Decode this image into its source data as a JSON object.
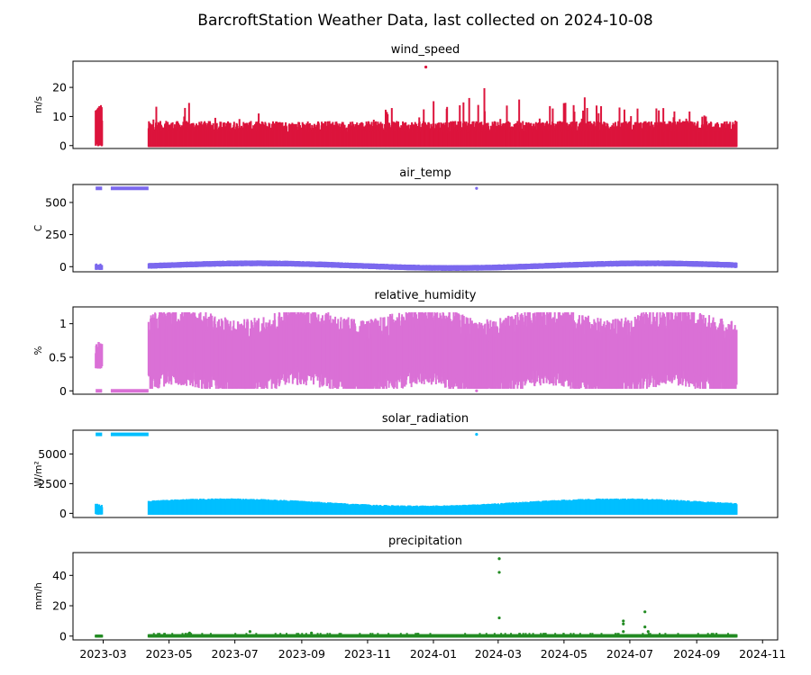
{
  "figure": {
    "title": "BarcroftStation Weather Data, last collected on 2024-10-08",
    "x_tick_labels": [
      "2023-03",
      "2023-05",
      "2023-07",
      "2023-09",
      "2023-11",
      "2024-01",
      "2024-03",
      "2024-05",
      "2024-07",
      "2024-09",
      "2024-11"
    ]
  },
  "chart_data": [
    {
      "type": "scatter",
      "title": "wind_speed",
      "ylabel": "m/s",
      "color": "#dc143c",
      "xlim": [
        "2023-02-01",
        "2024-11-15"
      ],
      "ylim": [
        -1,
        29
      ],
      "yticks": [
        0,
        10,
        20
      ],
      "series": [
        {
          "segments": [
            {
              "x_start": "2023-02-22",
              "x_end": "2023-02-28",
              "y_min": 0,
              "y_max": 14
            },
            {
              "x_start": "2023-04-12",
              "x_end": "2024-10-08",
              "y_min": 0,
              "y_max": 10,
              "peaks": [
                17,
                8,
                9,
                6,
                8,
                12,
                15,
                18,
                18,
                15,
                13,
                12,
                10
              ]
            }
          ],
          "outliers": [
            {
              "x": "2023-12-25",
              "y": 27
            }
          ]
        }
      ]
    },
    {
      "type": "scatter",
      "title": "air_temp",
      "ylabel": "C",
      "color": "#7b68ee",
      "xlim": [
        "2023-02-01",
        "2024-11-15"
      ],
      "ylim": [
        -40,
        640
      ],
      "yticks": [
        0,
        250,
        500
      ],
      "series": [
        {
          "segments": [
            {
              "x_start": "2023-02-22",
              "x_end": "2023-02-28",
              "y_min": -15,
              "y_max": 15
            },
            {
              "x_start": "2023-04-12",
              "x_end": "2024-10-08",
              "y_min": -10,
              "y_max": 35
            }
          ],
          "flat_runs": [
            {
              "x_start": "2023-02-22",
              "x_end": "2023-02-28",
              "y": 610
            },
            {
              "x_start": "2023-03-08",
              "x_end": "2023-04-12",
              "y": 610
            }
          ],
          "outliers": [
            {
              "x": "2024-02-10",
              "y": 610
            }
          ]
        }
      ]
    },
    {
      "type": "scatter",
      "title": "relative_humidity",
      "ylabel": "%",
      "color": "#da70d6",
      "xlim": [
        "2023-02-01",
        "2024-11-15"
      ],
      "ylim": [
        -0.05,
        1.25
      ],
      "yticks": [
        0.0,
        0.5,
        1.0
      ],
      "series": [
        {
          "segments": [
            {
              "x_start": "2023-02-22",
              "x_end": "2023-02-28",
              "y_min": 0.35,
              "y_max": 0.72
            },
            {
              "x_start": "2023-04-12",
              "x_end": "2024-10-08",
              "y_min": 0.05,
              "y_max": 1.15
            }
          ],
          "flat_runs": [
            {
              "x_start": "2023-02-22",
              "x_end": "2023-02-28",
              "y": 0.0
            },
            {
              "x_start": "2023-03-08",
              "x_end": "2023-04-12",
              "y": 0.0
            }
          ],
          "outliers": [
            {
              "x": "2024-02-10",
              "y": 0.0
            }
          ]
        }
      ]
    },
    {
      "type": "scatter",
      "title": "solar_radiation",
      "ylabel": "W/m²",
      "color": "#00bfff",
      "xlim": [
        "2023-02-01",
        "2024-11-15"
      ],
      "ylim": [
        -350,
        7000
      ],
      "yticks": [
        0,
        2500,
        5000
      ],
      "series": [
        {
          "segments": [
            {
              "x_start": "2023-02-22",
              "x_end": "2023-02-28",
              "y_min": 0,
              "y_max": 700
            },
            {
              "x_start": "2023-04-12",
              "x_end": "2024-10-08",
              "y_min": 0,
              "y_max": 1100
            }
          ],
          "flat_runs": [
            {
              "x_start": "2023-02-22",
              "x_end": "2023-02-28",
              "y": 6650
            },
            {
              "x_start": "2023-03-08",
              "x_end": "2023-04-12",
              "y": 6650
            }
          ],
          "outliers": [
            {
              "x": "2024-02-10",
              "y": 6650
            }
          ]
        }
      ]
    },
    {
      "type": "scatter",
      "title": "precipitation",
      "ylabel": "mm/h",
      "color": "#228b22",
      "xlim": [
        "2023-02-01",
        "2024-11-15"
      ],
      "ylim": [
        -2.5,
        55
      ],
      "yticks": [
        0,
        20,
        40
      ],
      "series": [
        {
          "segments": [
            {
              "x_start": "2023-02-22",
              "x_end": "2023-02-28",
              "y_min": 0,
              "y_max": 0
            },
            {
              "x_start": "2023-04-12",
              "x_end": "2024-10-08",
              "y_min": 0,
              "y_max": 1
            }
          ],
          "outliers": [
            {
              "x": "2023-05-20",
              "y": 2
            },
            {
              "x": "2023-07-15",
              "y": 3
            },
            {
              "x": "2023-09-10",
              "y": 2
            },
            {
              "x": "2024-03-02",
              "y": 51
            },
            {
              "x": "2024-03-02",
              "y": 42
            },
            {
              "x": "2024-03-02",
              "y": 12
            },
            {
              "x": "2024-06-25",
              "y": 10
            },
            {
              "x": "2024-06-25",
              "y": 8
            },
            {
              "x": "2024-06-25",
              "y": 3
            },
            {
              "x": "2024-07-15",
              "y": 16
            },
            {
              "x": "2024-07-15",
              "y": 6
            },
            {
              "x": "2024-07-18",
              "y": 3
            }
          ]
        }
      ]
    }
  ]
}
